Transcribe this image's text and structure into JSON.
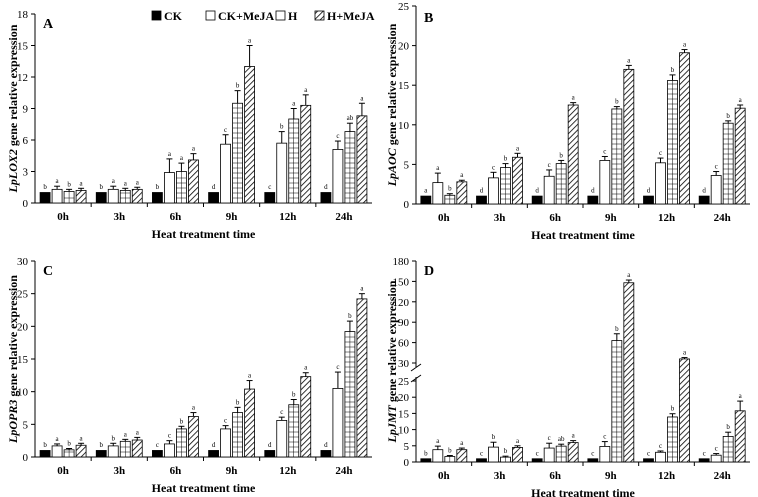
{
  "legend": [
    "CK",
    "CK+MeJA",
    "H",
    "H+MeJA"
  ],
  "chart_data": [
    {
      "type": "bar",
      "panel": "A",
      "ylabel_italic": "LpLOX2",
      "ylabel_rest": " gene relative expression",
      "xlabel": "Heat treatment time",
      "categories": [
        "0h",
        "3h",
        "6h",
        "9h",
        "12h",
        "24h"
      ],
      "ylim": [
        0,
        18
      ],
      "yticks": [
        0,
        3,
        6,
        9,
        12,
        15,
        18
      ],
      "legend_position": "top",
      "series": [
        {
          "name": "CK",
          "values": [
            1,
            1,
            1,
            1,
            1,
            1
          ],
          "errors": [
            0.05,
            0.05,
            0.05,
            0.05,
            0.05,
            0.05
          ],
          "letters": [
            "b",
            "b",
            "b",
            "d",
            "c",
            "d"
          ]
        },
        {
          "name": "CK+MeJA",
          "values": [
            1.3,
            1.3,
            2.9,
            5.6,
            5.7,
            5.1
          ],
          "errors": [
            0.3,
            0.3,
            1.3,
            0.9,
            1.1,
            0.8
          ],
          "letters": [
            "a",
            "a",
            "a",
            "c",
            "b",
            "c"
          ]
        },
        {
          "name": "H",
          "values": [
            1.1,
            1.2,
            3.0,
            9.5,
            8.0,
            6.8
          ],
          "errors": [
            0.2,
            0.2,
            0.8,
            1.2,
            1.0,
            0.8
          ],
          "letters": [
            "b",
            "a",
            "a",
            "b",
            "a",
            "ab"
          ]
        },
        {
          "name": "H+MeJA",
          "values": [
            1.2,
            1.3,
            4.1,
            13.0,
            9.3,
            8.3
          ],
          "errors": [
            0.2,
            0.2,
            0.6,
            2.0,
            1.0,
            1.2
          ],
          "letters": [
            "a",
            "a",
            "a",
            "a",
            "a",
            "a"
          ]
        }
      ]
    },
    {
      "type": "bar",
      "panel": "B",
      "ylabel_italic": "LpAOC",
      "ylabel_rest": " gene relative expression",
      "xlabel": "Heat treatment time",
      "categories": [
        "0h",
        "3h",
        "6h",
        "9h",
        "12h",
        "24h"
      ],
      "ylim": [
        0,
        25
      ],
      "yticks": [
        0,
        5,
        10,
        15,
        20,
        25
      ],
      "series": [
        {
          "name": "CK",
          "values": [
            1,
            1,
            1,
            1,
            1,
            1
          ],
          "errors": [
            0.05,
            0.05,
            0.05,
            0.05,
            0.05,
            0.05
          ],
          "letters": [
            "a",
            "d",
            "d",
            "d",
            "d",
            "d"
          ]
        },
        {
          "name": "CK+MeJA",
          "values": [
            2.7,
            3.3,
            3.5,
            5.5,
            5.2,
            3.6
          ],
          "errors": [
            1.2,
            0.7,
            0.8,
            0.5,
            0.6,
            0.5
          ],
          "letters": [
            "a",
            "c",
            "c",
            "c",
            "c",
            "c"
          ]
        },
        {
          "name": "H",
          "values": [
            1.1,
            4.6,
            5.1,
            12.0,
            15.6,
            10.2
          ],
          "errors": [
            0.2,
            0.5,
            0.4,
            0.3,
            0.7,
            0.3
          ],
          "letters": [
            "b",
            "b",
            "b",
            "b",
            "b",
            "b"
          ]
        },
        {
          "name": "H+MeJA",
          "values": [
            2.8,
            5.9,
            12.5,
            17.0,
            19.1,
            12.1
          ],
          "errors": [
            0.2,
            0.5,
            0.3,
            0.5,
            0.4,
            0.4
          ],
          "letters": [
            "a",
            "a",
            "a",
            "a",
            "a",
            "a"
          ]
        }
      ]
    },
    {
      "type": "bar",
      "panel": "C",
      "ylabel_italic": "LpOPR3",
      "ylabel_rest": " gene relative expression",
      "xlabel": "Heat treatment time",
      "categories": [
        "0h",
        "3h",
        "6h",
        "9h",
        "12h",
        "24h"
      ],
      "ylim": [
        0,
        30
      ],
      "yticks": [
        0,
        5,
        10,
        15,
        20,
        25,
        30
      ],
      "series": [
        {
          "name": "CK",
          "values": [
            1,
            1,
            1,
            1,
            1,
            1
          ],
          "errors": [
            0.05,
            0.05,
            0.05,
            0.05,
            0.05,
            0.05
          ],
          "letters": [
            "b",
            "b",
            "c",
            "d",
            "d",
            "d"
          ]
        },
        {
          "name": "CK+MeJA",
          "values": [
            1.7,
            1.7,
            2.0,
            4.3,
            5.6,
            10.5
          ],
          "errors": [
            0.3,
            0.4,
            0.5,
            0.5,
            0.5,
            2.5
          ],
          "letters": [
            "a",
            "b",
            "c",
            "c",
            "c",
            "c"
          ]
        },
        {
          "name": "H",
          "values": [
            1.1,
            2.4,
            4.3,
            6.8,
            8.0,
            19.2
          ],
          "errors": [
            0.2,
            0.3,
            0.4,
            0.8,
            0.8,
            1.6
          ],
          "letters": [
            "b",
            "a",
            "b",
            "b",
            "b",
            "b"
          ]
        },
        {
          "name": "H+MeJA",
          "values": [
            1.8,
            2.6,
            6.2,
            10.4,
            12.3,
            24.2
          ],
          "errors": [
            0.3,
            0.4,
            0.6,
            1.3,
            0.6,
            0.8
          ],
          "letters": [
            "a",
            "a",
            "a",
            "a",
            "a",
            "a"
          ]
        }
      ]
    },
    {
      "type": "bar",
      "panel": "D",
      "ylabel_italic": "LpJMT",
      "ylabel_rest": " gene relative expression",
      "xlabel": "Heat treatment time",
      "categories": [
        "0h",
        "3h",
        "6h",
        "9h",
        "12h",
        "24h"
      ],
      "broken_axis": true,
      "lower_ylim": [
        0,
        25
      ],
      "lower_yticks": [
        0,
        5,
        10,
        15,
        20,
        25
      ],
      "upper_ylim": [
        30,
        180
      ],
      "upper_yticks": [
        30,
        60,
        90,
        120,
        150,
        180
      ],
      "series": [
        {
          "name": "CK",
          "values": [
            1,
            1,
            1,
            1,
            1,
            1
          ],
          "errors": [
            0.05,
            0.05,
            0.05,
            0.05,
            0.05,
            0.05
          ],
          "letters": [
            "b",
            "c",
            "c",
            "c",
            "c",
            "c"
          ]
        },
        {
          "name": "CK+MeJA",
          "values": [
            3.8,
            4.6,
            4.3,
            4.8,
            3.0,
            2.1
          ],
          "errors": [
            1.1,
            1.5,
            1.5,
            1.5,
            0.4,
            0.5
          ],
          "letters": [
            "a",
            "b",
            "c",
            "c",
            "c",
            "c"
          ]
        },
        {
          "name": "H",
          "values": [
            1.7,
            1.5,
            4.9,
            63.0,
            13.9,
            7.9
          ],
          "errors": [
            0.3,
            0.3,
            0.6,
            10.0,
            1.0,
            1.3
          ],
          "letters": [
            "b",
            "b",
            "ab",
            "b",
            "b",
            "b"
          ]
        },
        {
          "name": "H+MeJA",
          "values": [
            3.8,
            4.5,
            6.0,
            148.0,
            36.0,
            15.8
          ],
          "errors": [
            0.5,
            0.5,
            0.6,
            4.0,
            2.0,
            3.0
          ],
          "letters": [
            "a",
            "a",
            "a",
            "a",
            "a",
            "a"
          ]
        }
      ]
    }
  ]
}
